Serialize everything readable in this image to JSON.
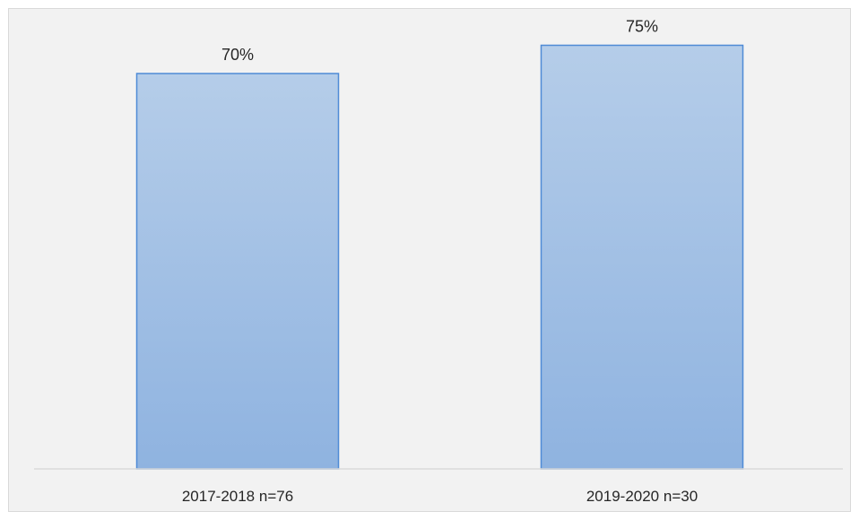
{
  "chart_data": {
    "type": "bar",
    "categories": [
      "2017-2018 n=76",
      "2019-2020 n=30"
    ],
    "values": [
      70,
      75
    ],
    "value_labels": [
      "70%",
      "75%"
    ],
    "title": "",
    "xlabel": "",
    "ylabel": "",
    "ylim": [
      0,
      80
    ],
    "grid": false,
    "legend": "none",
    "colors": {
      "bar_top": "#b5cde9",
      "bar_bottom": "#8fb3e0",
      "bar_border": "#4f8bd6",
      "axis": "#d9d9d9",
      "background": "#f2f2f2"
    }
  }
}
